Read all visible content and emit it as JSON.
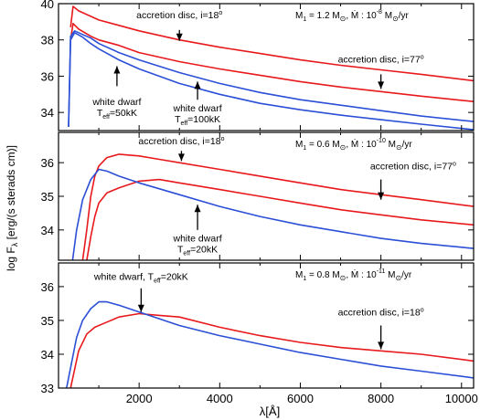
{
  "figure": {
    "ylabel": "log Fλ [erg/(s·sterads·cm)]",
    "ylabel_main": "log F",
    "ylabel_sub": "λ",
    "ylabel_rest": " [erg/(s sterads cm)]",
    "xlabel": "λ[Å]",
    "xlabel_main": "λ[Å]",
    "xlim": [
      0,
      10300
    ],
    "xticks": [
      2000,
      4000,
      6000,
      8000,
      10000
    ],
    "xtick_labels": [
      "2000",
      "4000",
      "6000",
      "8000",
      "10000"
    ],
    "colors": {
      "disc": "#e8191c",
      "white_dwarf": "#2b4fd6",
      "axis": "#000000"
    }
  },
  "chart_data": [
    {
      "type": "line",
      "ylim": [
        33,
        40
      ],
      "yticks": [
        34,
        36,
        38,
        40
      ],
      "ytick_labels": [
        "34",
        "36",
        "38",
        "40"
      ],
      "params": {
        "m_main": "M",
        "m_sub": "1",
        "m_rest": " = 1.2 M",
        "mdot_rest": ", Ṁ :  10",
        "mdot_exp": "-8",
        "mdot_unit": " M",
        "mdot_unit_tail": "/yr"
      },
      "series": [
        {
          "kind": "disc",
          "x": [
            300,
            360,
            500,
            800,
            1000,
            1500,
            2000,
            3000,
            4000,
            5000,
            6000,
            7000,
            8000,
            9000,
            10300
          ],
          "y": [
            38.7,
            39.85,
            39.6,
            39.3,
            39.1,
            38.8,
            38.5,
            38.0,
            37.6,
            37.25,
            36.9,
            36.6,
            36.35,
            36.1,
            35.75
          ]
        },
        {
          "kind": "disc",
          "x": [
            300,
            360,
            500,
            800,
            1000,
            1500,
            2000,
            3000,
            4000,
            5000,
            6000,
            7000,
            8000,
            9000,
            10300
          ],
          "y": [
            38.0,
            38.9,
            38.6,
            38.2,
            38.0,
            37.7,
            37.3,
            36.8,
            36.4,
            36.05,
            35.7,
            35.4,
            35.15,
            34.9,
            34.6
          ]
        },
        {
          "kind": "white_dwarf",
          "x": [
            250,
            300,
            400,
            600,
            800,
            1000,
            1500,
            2000,
            3000,
            4000,
            5000,
            6000,
            7000,
            8000,
            9000,
            10300
          ],
          "y": [
            33.2,
            38.2,
            38.5,
            38.3,
            38.1,
            37.8,
            37.3,
            36.9,
            36.2,
            35.6,
            35.1,
            34.7,
            34.4,
            34.1,
            33.8,
            33.5
          ]
        },
        {
          "kind": "white_dwarf",
          "x": [
            250,
            300,
            400,
            600,
            800,
            1000,
            1500,
            2000,
            3000,
            4000,
            5000,
            6000,
            7000,
            8000,
            9000,
            10300
          ],
          "y": [
            33.2,
            38.0,
            38.4,
            38.15,
            37.8,
            37.5,
            36.9,
            36.4,
            35.6,
            35.0,
            34.5,
            34.15,
            33.85,
            33.6,
            33.35,
            33.05
          ]
        }
      ],
      "annotations": [
        {
          "main": "accretion disc, i=18",
          "sup": "o",
          "text_x": 3000,
          "text_y": 39.2,
          "arrow_x": 3000,
          "arrow_from": 38.55,
          "arrow_to": 37.95
        },
        {
          "main": "accretion disc, i=77",
          "sup": "o",
          "text_x": 8000,
          "text_y": 36.75,
          "arrow_x": 8000,
          "arrow_from": 36.1,
          "arrow_to": 35.3
        },
        {
          "main": "white dwarf",
          "line2_main": "T",
          "line2_sub": "eff",
          "line2_rest": "=50kK",
          "text_x": 1450,
          "text_y": 34.4,
          "arrow_x": 1450,
          "arrow_from": 35.45,
          "arrow_to": 36.55
        },
        {
          "main": "white dwarf",
          "line2_main": "T",
          "line2_sub": "eff",
          "line2_rest": "=100kK",
          "text_x": 3450,
          "text_y": 34.05,
          "arrow_x": 3450,
          "arrow_from": 34.7,
          "arrow_to": 35.7
        }
      ]
    },
    {
      "type": "line",
      "ylim": [
        33.1,
        36.9
      ],
      "yticks": [
        34,
        35,
        36
      ],
      "ytick_labels": [
        "34",
        "35",
        "36"
      ],
      "params": {
        "m_main": "M",
        "m_sub": "1",
        "m_rest": " = 0.6 M",
        "mdot_rest": ", Ṁ :  10",
        "mdot_exp": "-10",
        "mdot_unit": " M",
        "mdot_unit_tail": "/yr"
      },
      "series": [
        {
          "kind": "disc",
          "x": [
            600,
            700,
            800,
            900,
            1000,
            1200,
            1500,
            2000,
            2500,
            3000,
            4000,
            5000,
            6000,
            7000,
            8000,
            9000,
            10300
          ],
          "y": [
            33.1,
            34.0,
            35.0,
            35.6,
            35.9,
            36.15,
            36.25,
            36.2,
            36.1,
            36.0,
            35.8,
            35.6,
            35.4,
            35.2,
            35.05,
            34.9,
            34.7
          ]
        },
        {
          "kind": "disc",
          "x": [
            700,
            800,
            900,
            1000,
            1200,
            1500,
            2000,
            2500,
            3000,
            4000,
            5000,
            6000,
            7000,
            8000,
            9000,
            10300
          ],
          "y": [
            33.1,
            33.8,
            34.4,
            34.8,
            35.1,
            35.25,
            35.45,
            35.5,
            35.4,
            35.2,
            35.0,
            34.8,
            34.6,
            34.45,
            34.3,
            34.15
          ]
        },
        {
          "kind": "white_dwarf",
          "x": [
            350,
            450,
            600,
            800,
            1000,
            1200,
            1500,
            2000,
            3000,
            4000,
            5000,
            6000,
            7000,
            8000,
            9000,
            10300
          ],
          "y": [
            33.1,
            34.0,
            34.9,
            35.5,
            35.8,
            35.75,
            35.6,
            35.4,
            35.05,
            34.7,
            34.4,
            34.15,
            33.95,
            33.75,
            33.6,
            33.45
          ]
        }
      ],
      "annotations": [
        {
          "main": "accretion disc, i=18",
          "sup": "o",
          "text_x": 3050,
          "text_y": 36.55,
          "arrow_x": 3050,
          "arrow_from": 36.35,
          "arrow_to": 36.05
        },
        {
          "main": "accretion disc, i=77",
          "sup": "o",
          "text_x": 8800,
          "text_y": 35.8,
          "arrow_x": 8000,
          "arrow_from": 35.5,
          "arrow_to": 34.9
        },
        {
          "main": "white dwarf",
          "line2_main": "T",
          "line2_sub": "eff",
          "line2_rest": "=20kK",
          "text_x": 3450,
          "text_y": 33.65,
          "arrow_x": 3450,
          "arrow_from": 34.0,
          "arrow_to": 34.75
        }
      ]
    },
    {
      "type": "line",
      "ylim": [
        33,
        36.7
      ],
      "yticks": [
        33,
        34,
        35,
        36
      ],
      "ytick_labels": [
        "33",
        "34",
        "35",
        "36"
      ],
      "params": {
        "m_main": "M",
        "m_sub": "1",
        "m_rest": " = 0.8 M",
        "mdot_rest": ", Ṁ :  10",
        "mdot_exp": "-11",
        "mdot_unit": " M",
        "mdot_unit_tail": "/yr"
      },
      "series": [
        {
          "kind": "disc",
          "x": [
            300,
            500,
            700,
            900,
            1200,
            1500,
            2000,
            2500,
            3000,
            4000,
            5000,
            6000,
            7000,
            8000,
            9000,
            10300
          ],
          "y": [
            33.0,
            34.1,
            34.6,
            34.8,
            34.95,
            35.1,
            35.2,
            35.15,
            35.1,
            34.8,
            34.55,
            34.35,
            34.2,
            34.1,
            34.0,
            33.8
          ]
        },
        {
          "kind": "white_dwarf",
          "x": [
            200,
            300,
            450,
            600,
            800,
            1000,
            1200,
            1500,
            2000,
            3000,
            4000,
            5000,
            6000,
            7000,
            8000,
            9000,
            10300
          ],
          "y": [
            33.0,
            33.6,
            34.5,
            35.0,
            35.35,
            35.55,
            35.55,
            35.45,
            35.25,
            34.85,
            34.55,
            34.3,
            34.05,
            33.85,
            33.65,
            33.5,
            33.3
          ]
        }
      ],
      "annotations": [
        {
          "main": "white dwarf, T",
          "main_sub": "eff",
          "main_rest": "=20kK",
          "text_x": 2050,
          "text_y": 36.2,
          "arrow_x": 2050,
          "arrow_from": 35.95,
          "arrow_to": 35.25
        },
        {
          "main": "accretion disc, i=18",
          "sup": "o",
          "text_x": 8000,
          "text_y": 35.15,
          "arrow_x": 8000,
          "arrow_from": 34.85,
          "arrow_to": 34.15
        }
      ]
    }
  ]
}
